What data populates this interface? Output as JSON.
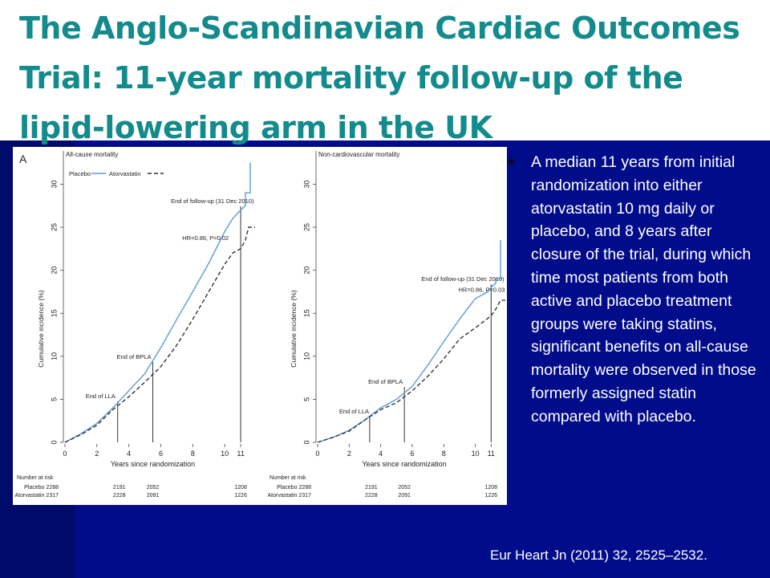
{
  "slide": {
    "title": "The Anglo-Scandinavian Cardiac Outcomes Trial: 11-year mortality follow-up of the lipid-lowering arm in the UK",
    "bullet": "A median 11 years from initial randomization into either atorvastatin 10 mg daily or placebo, and 8 years after closure of the trial, during which time most patients from both active and placebo treatment groups were taking statins, significant benefits on all-cause mortality were observed in those formerly assigned statin compared with placebo.",
    "citation": "Eur Heart Jn (2011) 32, 2525–2532.",
    "colors": {
      "background": "#010c8a",
      "title": "#138b8c",
      "placebo": "#5b9bd5",
      "atorvastatin": "#333333"
    }
  },
  "figure": {
    "panel_label": "A",
    "number_at_risk_label": "Number at risk",
    "risk_rows": [
      {
        "label": "Placebo 2288",
        "values": [
          "2191",
          "2052",
          "1208"
        ]
      },
      {
        "label": "Atorvastatin 2317",
        "values": [
          "2228",
          "2091",
          "1226"
        ]
      }
    ]
  },
  "chart_data": [
    {
      "type": "line",
      "title": "All-cause mortality",
      "xlabel": "Years since randomization",
      "ylabel": "Cumulative incidence (%)",
      "xlim": [
        0,
        11.8
      ],
      "ylim": [
        0,
        32
      ],
      "xticks": [
        "0",
        "2",
        "4",
        "6",
        "8",
        "10",
        "11"
      ],
      "xtick_values": [
        0,
        2,
        4,
        6,
        8,
        10,
        11
      ],
      "yticks": [
        "0",
        "5",
        "10",
        "15",
        "20",
        "25",
        "30"
      ],
      "ytick_values": [
        0,
        5,
        10,
        15,
        20,
        25,
        30
      ],
      "legend": [
        "Placebo",
        "Atorvastatin"
      ],
      "legend_position": "top-left",
      "series": [
        {
          "name": "Placebo",
          "x": [
            0,
            1,
            2,
            3,
            4,
            5,
            6,
            7,
            8,
            9,
            10,
            10.5,
            11,
            11.3,
            11.3,
            11.6,
            11.6
          ],
          "y": [
            0,
            1,
            2.2,
            4,
            6,
            8,
            11,
            14.3,
            17.5,
            20.8,
            24.5,
            26,
            27,
            27.5,
            29,
            29,
            32.5
          ]
        },
        {
          "name": "Atorvastatin",
          "x": [
            0,
            1,
            2,
            3,
            4,
            5,
            6,
            7,
            8,
            9,
            10,
            10.5,
            11,
            11.3,
            11.5,
            11.6,
            11.9
          ],
          "y": [
            0,
            0.9,
            2,
            3.8,
            5.3,
            7,
            8.8,
            11.3,
            14.3,
            17.5,
            20.7,
            22,
            22.5,
            23.5,
            25,
            25,
            25
          ]
        }
      ],
      "vlines": [
        {
          "x": 3.3,
          "label": "End of LLA"
        },
        {
          "x": 5.5,
          "label": "End of BPLA"
        },
        {
          "x": 11,
          "label": "End of follow-up (31 Dec 2010)"
        }
      ],
      "annotation": {
        "text": "HR=0.86, P=0.02",
        "x": 8.8,
        "y": 23.5
      }
    },
    {
      "type": "line",
      "title": "Non-cardiovascular mortality",
      "xlabel": "Years since randomization",
      "ylabel": "Cumulative incidence (%)",
      "xlim": [
        0,
        11.8
      ],
      "ylim": [
        0,
        32
      ],
      "xticks": [
        "0",
        "2",
        "4",
        "6",
        "8",
        "10",
        "11"
      ],
      "xtick_values": [
        0,
        2,
        4,
        6,
        8,
        10,
        11
      ],
      "yticks": [
        "0",
        "5",
        "10",
        "15",
        "20",
        "25",
        "30"
      ],
      "ytick_values": [
        0,
        5,
        10,
        15,
        20,
        25,
        30
      ],
      "series": [
        {
          "name": "Placebo",
          "x": [
            0,
            1,
            2,
            3,
            4,
            5,
            6,
            7,
            8,
            9,
            10,
            10.8,
            11,
            11.3,
            11.3,
            11.6,
            11.6
          ],
          "y": [
            0,
            0.6,
            1.4,
            2.6,
            4,
            5,
            6.5,
            9,
            11.7,
            14.3,
            16.7,
            17.5,
            18,
            18.5,
            19,
            19,
            23.5
          ]
        },
        {
          "name": "Atorvastatin",
          "x": [
            0,
            1,
            2,
            3,
            4,
            5,
            6,
            7,
            8,
            9,
            10,
            11,
            11.3,
            11.6,
            11.9
          ],
          "y": [
            0,
            0.6,
            1.3,
            2.6,
            3.8,
            4.6,
            6,
            7.7,
            9.7,
            12,
            13.3,
            14.7,
            15.5,
            16.5,
            16.5
          ]
        }
      ],
      "vlines": [
        {
          "x": 3.3,
          "label": "End of LLA"
        },
        {
          "x": 5.5,
          "label": "End of BPLA"
        },
        {
          "x": 11,
          "label": "End of follow-up (31 Dec 2010)"
        }
      ],
      "annotation": {
        "text": "HR=0.86, P=0.03",
        "x": 10.4,
        "y": 17.5
      }
    }
  ]
}
